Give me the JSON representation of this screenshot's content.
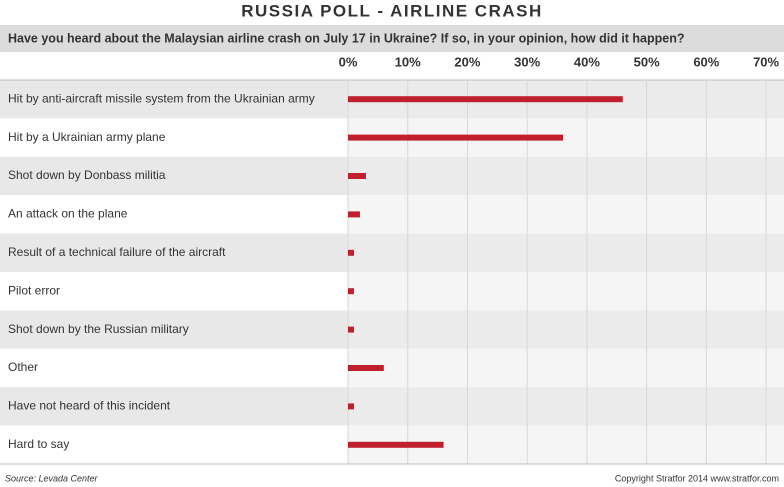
{
  "chart_data": {
    "type": "bar",
    "orientation": "horizontal",
    "title": "RUSSIA POLL - AIRLINE CRASH",
    "subtitle": "Have you heard about the Malaysian airline crash on July 17 in Ukraine? If so, in your opinion, how did it happen?",
    "categories": [
      "Hit by anti-aircraft missile system from the Ukrainian army",
      "Hit by a Ukrainian army plane",
      "Shot down by Donbass militia",
      "An attack on the plane",
      "Result of a technical failure of the aircraft",
      "Pilot error",
      "Shot down by the Russian military",
      "Other",
      "Have not heard of this incident",
      "Hard to say"
    ],
    "values": [
      46,
      36,
      3,
      2,
      1,
      1,
      1,
      6,
      1,
      16
    ],
    "color": "#c0202e",
    "xlim": [
      0,
      73
    ],
    "xticks": [
      {
        "value": 0,
        "label": "0%"
      },
      {
        "value": 10,
        "label": "10%"
      },
      {
        "value": 20,
        "label": "20%"
      },
      {
        "value": 30,
        "label": "30%"
      },
      {
        "value": 40,
        "label": "40%"
      },
      {
        "value": 50,
        "label": "50%"
      },
      {
        "value": 60,
        "label": "60%"
      },
      {
        "value": 70,
        "label": "70%"
      }
    ],
    "grid": true,
    "source": "Source: Levada Center",
    "credit": "Copyright Stratfor 2014  www.stratfor.com"
  }
}
